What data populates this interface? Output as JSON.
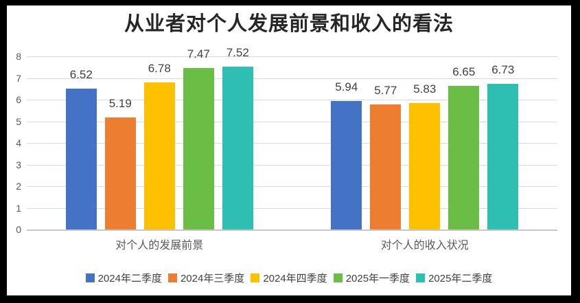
{
  "chart_data": {
    "type": "bar",
    "title": "从业者对个人发展前景和收入的看法",
    "categories": [
      "对个人的发展前景",
      "对个人的收入状况"
    ],
    "series": [
      {
        "name": "2024年二季度",
        "color": "#4472C4",
        "values": [
          6.52,
          5.94
        ]
      },
      {
        "name": "2024年三季度",
        "color": "#ED7D31",
        "values": [
          5.19,
          5.77
        ]
      },
      {
        "name": "2024年四季度",
        "color": "#FFC000",
        "values": [
          6.78,
          5.83
        ]
      },
      {
        "name": "2025年一季度",
        "color": "#6BBE45",
        "values": [
          7.47,
          6.65
        ]
      },
      {
        "name": "2025年二季度",
        "color": "#2FBFB2",
        "values": [
          7.52,
          6.73
        ]
      }
    ],
    "ylim": [
      0,
      8
    ],
    "ytick_step": 1,
    "yticks": [
      "0",
      "1",
      "2",
      "3",
      "4",
      "5",
      "6",
      "7",
      "8"
    ],
    "grid": true,
    "data_labels": true,
    "legend_position": "bottom"
  },
  "colors": {
    "frame_border": "#000000",
    "canvas_background": "#FFFFFF",
    "gridline": "#D9D9D9",
    "axis_baseline": "#C8C8C8",
    "title_text": "#262626",
    "data_label_text": "#404040",
    "tick_text": "#595959",
    "legend_text": "#404040"
  }
}
